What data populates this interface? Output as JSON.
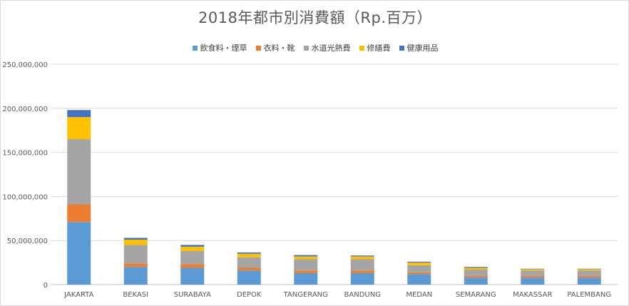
{
  "chart_data": {
    "type": "bar",
    "stacked": true,
    "title": "2018年都市別消費額（Rp.百万）",
    "xlabel": "",
    "ylabel": "",
    "ylim": [
      0,
      250000000
    ],
    "yticks": [
      0,
      50000000,
      100000000,
      150000000,
      200000000,
      250000000
    ],
    "ytick_labels": [
      "0",
      "50,000,000",
      "100,000,000",
      "150,000,000",
      "200,000,000",
      "250,000,000"
    ],
    "grid": true,
    "legend_position": "top",
    "categories": [
      "JAKARTA",
      "BEKASI",
      "SURABAYA",
      "DEPOK",
      "TANGERANG",
      "BANDUNG",
      "MEDAN",
      "SEMARANG",
      "MAKASSAR",
      "PALEMBANG"
    ],
    "series": [
      {
        "name": "飲食料・煙草",
        "color": "#5b9bd5",
        "values": [
          71000000,
          20000000,
          19000000,
          16000000,
          13000000,
          13000000,
          12000000,
          8000000,
          8000000,
          8000000
        ]
      },
      {
        "name": "衣料・靴",
        "color": "#ed7d31",
        "values": [
          20000000,
          4000000,
          4000000,
          3000000,
          3000000,
          3000000,
          2000000,
          2000000,
          2000000,
          2000000
        ]
      },
      {
        "name": "水道光熱費",
        "color": "#a5a5a5",
        "values": [
          74000000,
          21000000,
          15000000,
          12000000,
          13000000,
          13000000,
          8000000,
          7000000,
          6000000,
          6000000
        ]
      },
      {
        "name": "修繕費",
        "color": "#ffc000",
        "values": [
          25000000,
          6000000,
          5000000,
          4000000,
          3000000,
          3000000,
          3000000,
          2000000,
          1500000,
          1500000
        ]
      },
      {
        "name": "健康用品",
        "color": "#4472c4",
        "values": [
          8000000,
          2000000,
          2000000,
          1500000,
          1500000,
          1000000,
          1000000,
          1000000,
          500000,
          500000
        ]
      }
    ]
  }
}
